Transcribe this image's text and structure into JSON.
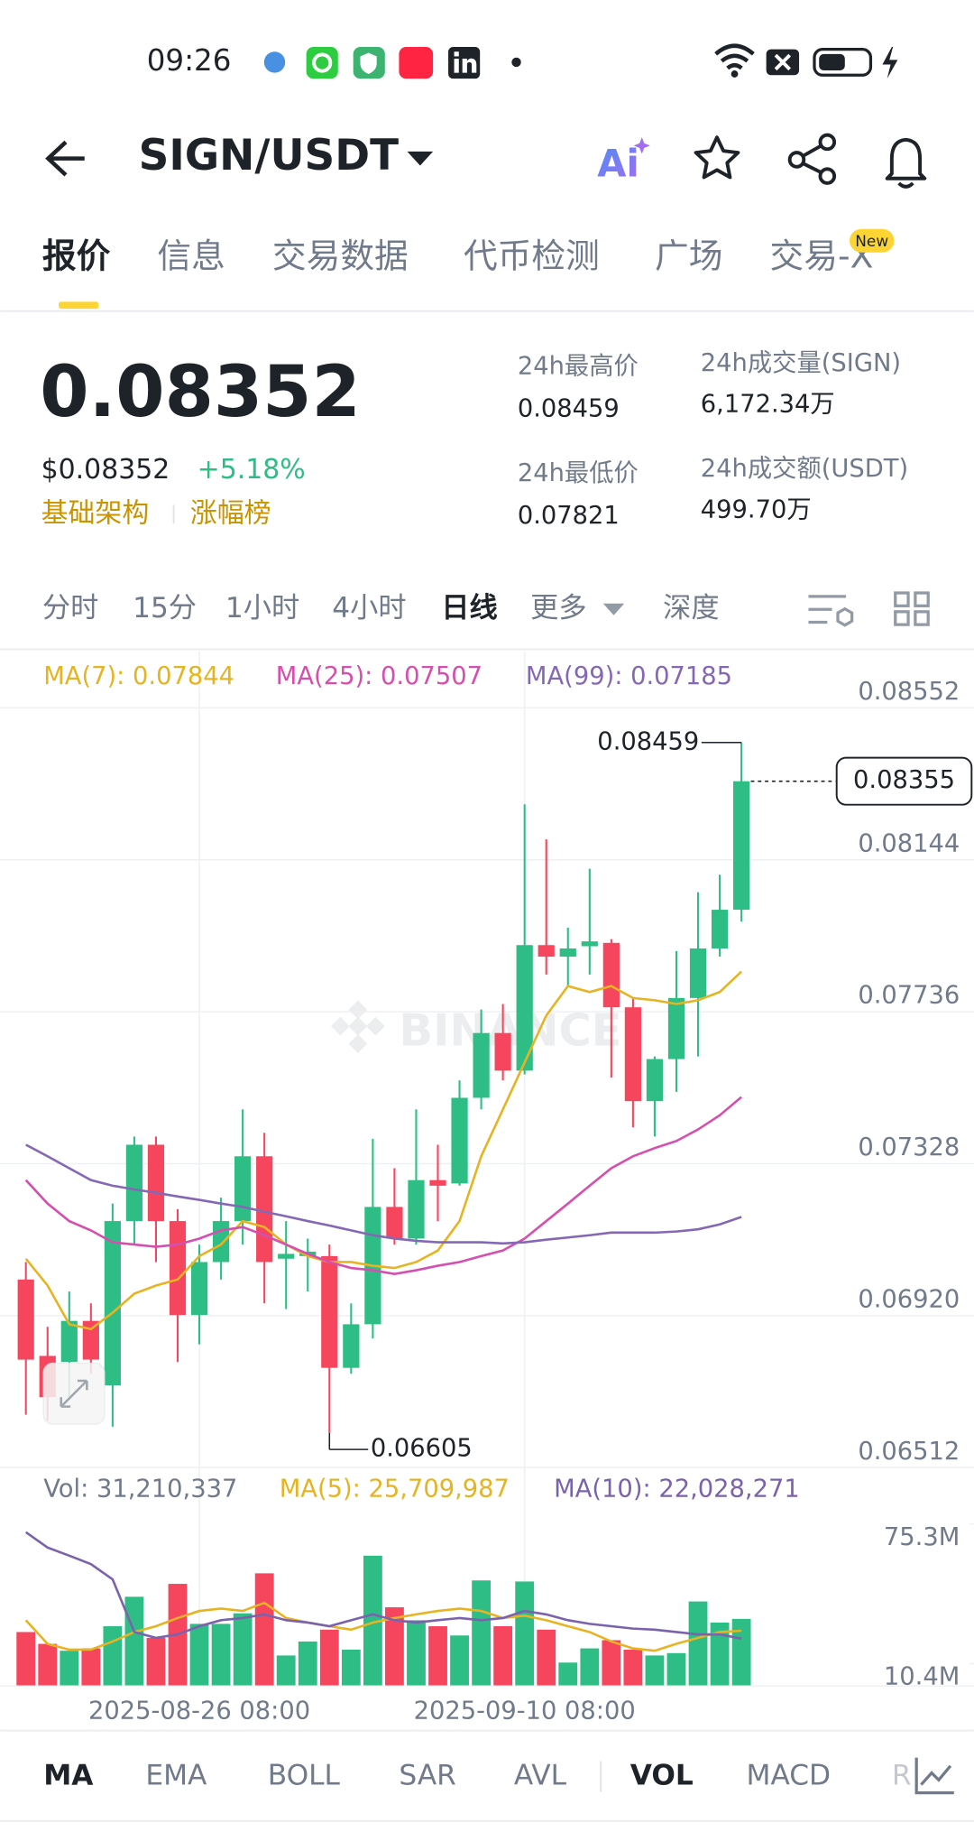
{
  "status_bar": {
    "time": "09:26"
  },
  "header": {
    "pair": "SIGN/USDT",
    "ai": "Ai"
  },
  "tabs": [
    "报价",
    "信息",
    "交易数据",
    "代币检测",
    "广场",
    "交易-X"
  ],
  "tab_badge": "New",
  "price": {
    "last": "0.08352",
    "usd": "$0.08352",
    "change": "+5.18%",
    "tags": [
      "基础架构",
      "涨幅榜"
    ]
  },
  "stats": [
    {
      "label": "24h最高价",
      "value": "0.08459"
    },
    {
      "label": "24h成交量(SIGN)",
      "value": "6,172.34万"
    },
    {
      "label": "24h最低价",
      "value": "0.07821"
    },
    {
      "label": "24h成交额(USDT)",
      "value": "499.70万"
    }
  ],
  "intervals": [
    "分时",
    "15分",
    "1小时",
    "4小时",
    "日线",
    "更多",
    "深度"
  ],
  "watermark": "BINANCE",
  "chart_data": [
    {
      "type": "candlestick",
      "categories": [
        null,
        null,
        null,
        null,
        null,
        null,
        null,
        null,
        "2025-08-26 08:00",
        null,
        null,
        null,
        null,
        null,
        null,
        null,
        null,
        null,
        null,
        null,
        null,
        null,
        null,
        "2025-09-10 08:00",
        null,
        null,
        null,
        null,
        null,
        null,
        null,
        null,
        null,
        null
      ],
      "open": [
        0.07017,
        0.06812,
        0.06796,
        0.06906,
        0.06733,
        0.07174,
        0.07379,
        0.07174,
        0.06922,
        0.07064,
        0.07174,
        0.07348,
        0.07073,
        0.0708,
        0.0708,
        0.0678,
        0.06897,
        0.07212,
        0.07127,
        0.07284,
        0.07275,
        0.07505,
        0.07679,
        0.07578,
        0.07915,
        0.07884,
        0.07912,
        0.07921,
        0.07748,
        0.07496,
        0.07609,
        0.07773,
        0.07906,
        0.0801
      ],
      "high": [
        0.07064,
        0.0689,
        0.06985,
        0.06953,
        0.07221,
        0.07401,
        0.07401,
        0.07206,
        0.07111,
        0.07237,
        0.07474,
        0.07411,
        0.07174,
        0.07127,
        0.07111,
        0.06953,
        0.07395,
        0.07316,
        0.07474,
        0.07379,
        0.07552,
        0.07742,
        0.07757,
        0.08293,
        0.08199,
        0.07962,
        0.0812,
        0.07931,
        0.07773,
        0.07616,
        0.07899,
        0.08057,
        0.08104,
        0.08459
      ],
      "low": [
        0.06654,
        0.06638,
        0.06701,
        0.06764,
        0.06622,
        0.07111,
        0.07064,
        0.06796,
        0.06843,
        0.07017,
        0.07111,
        0.06953,
        0.06938,
        0.06985,
        0.06605,
        0.06764,
        0.06859,
        0.07111,
        0.07111,
        0.07174,
        0.07269,
        0.07474,
        0.07552,
        0.07568,
        0.07836,
        0.07805,
        0.07836,
        0.07559,
        0.07426,
        0.07401,
        0.07521,
        0.07616,
        0.07884,
        0.07978
      ],
      "close": [
        0.06802,
        0.06701,
        0.06906,
        0.06802,
        0.07174,
        0.07379,
        0.07174,
        0.06922,
        0.07064,
        0.07174,
        0.07348,
        0.07064,
        0.07086,
        0.07092,
        0.0678,
        0.06897,
        0.07212,
        0.07127,
        0.07284,
        0.07269,
        0.07505,
        0.07679,
        0.07578,
        0.07915,
        0.07884,
        0.07906,
        0.07925,
        0.07748,
        0.07496,
        0.07609,
        0.07773,
        0.07906,
        0.0801,
        0.08355
      ],
      "up_color": "#2ebd85",
      "down_color": "#f6465d",
      "series": [
        {
          "name": "MA(7): 0.07844",
          "color": "#e6b422",
          "values": [
            0.07073,
            0.07001,
            0.06897,
            0.06884,
            0.06928,
            0.06979,
            0.07001,
            0.07017,
            0.0708,
            0.07111,
            0.07174,
            0.07158,
            0.07111,
            0.0708,
            0.07064,
            0.07064,
            0.07054,
            0.07048,
            0.07064,
            0.07095,
            0.07174,
            0.07348,
            0.07474,
            0.076,
            0.07726,
            0.07805,
            0.07789,
            0.07805,
            0.07773,
            0.07767,
            0.07757,
            0.07767,
            0.07789,
            0.07844
          ]
        },
        {
          "name": "MA(25): 0.07507",
          "color": "#d54fae",
          "values": [
            0.07284,
            0.07221,
            0.07174,
            0.07149,
            0.07117,
            0.07111,
            0.07105,
            0.07111,
            0.07127,
            0.07149,
            0.07158,
            0.07136,
            0.07111,
            0.07086,
            0.07064,
            0.07048,
            0.07042,
            0.07032,
            0.07042,
            0.07054,
            0.07064,
            0.0708,
            0.07095,
            0.07127,
            0.07174,
            0.07221,
            0.07269,
            0.07316,
            0.07348,
            0.0737,
            0.07389,
            0.0742,
            0.07458,
            0.07507
          ]
        },
        {
          "name": "MA(99): 0.07185",
          "color": "#8568b5",
          "values": [
            0.07379,
            0.07348,
            0.07316,
            0.07284,
            0.07269,
            0.07259,
            0.0725,
            0.0724,
            0.07231,
            0.07221,
            0.07212,
            0.07199,
            0.07187,
            0.07174,
            0.07162,
            0.07149,
            0.07136,
            0.07127,
            0.07121,
            0.07117,
            0.07117,
            0.07117,
            0.07114,
            0.07117,
            0.07124,
            0.0713,
            0.07136,
            0.07143,
            0.07143,
            0.07143,
            0.07146,
            0.07152,
            0.07165,
            0.07185
          ]
        }
      ],
      "ylim": [
        0.06512,
        0.08703
      ],
      "yticks": [
        0.08552,
        0.08144,
        0.07736,
        0.07328,
        {
          "value": 0.0692,
          "label": "0.06920"
        },
        0.06512
      ],
      "grid": true
    },
    {
      "type": "bar",
      "title": "Vol: 31,210,337",
      "values": [
        25100000,
        19600000,
        16400000,
        17500000,
        27800000,
        41500000,
        22400000,
        47500000,
        28900000,
        28900000,
        33800000,
        52400000,
        14200000,
        20700000,
        26200000,
        16900000,
        60600000,
        36600000,
        30600000,
        27800000,
        23500000,
        49100000,
        27800000,
        48600000,
        26200000,
        10900000,
        17500000,
        21300000,
        16900000,
        14200000,
        15300000,
        39300000,
        29500000,
        31210337
      ],
      "series": [
        {
          "name": "MA(5): 25,709,987",
          "color": "#e6b422",
          "values": [
            30600000,
            19600000,
            16900000,
            16900000,
            20700000,
            25100000,
            27800000,
            31600000,
            34900000,
            36000000,
            34900000,
            38700000,
            31600000,
            29500000,
            27800000,
            26200000,
            29500000,
            31600000,
            33300000,
            34900000,
            36000000,
            34900000,
            31600000,
            32700000,
            30600000,
            27800000,
            25100000,
            20700000,
            17500000,
            16400000,
            19600000,
            22400000,
            25100000,
            25709987
          ]
        },
        {
          "name": "MA(10): 22,028,271",
          "color": "#7b62ad",
          "values": [
            71500000,
            64400000,
            60600000,
            56700000,
            49600000,
            25100000,
            22400000,
            24000000,
            27800000,
            30600000,
            31600000,
            33300000,
            30600000,
            29500000,
            27800000,
            30600000,
            33300000,
            30600000,
            29500000,
            30600000,
            31600000,
            30600000,
            31600000,
            34900000,
            33300000,
            30600000,
            28900000,
            27800000,
            26700000,
            26200000,
            25100000,
            24000000,
            24000000,
            22028271
          ]
        }
      ],
      "ylim": [
        0,
        79700000
      ],
      "yticks": [
        {
          "value": 75300000,
          "label": "75.3M"
        },
        {
          "value": 10400000,
          "label": "10.4M"
        }
      ]
    }
  ],
  "indicators": [
    "MA",
    "EMA",
    "BOLL",
    "SAR",
    "AVL",
    "VOL",
    "MACD",
    "R"
  ]
}
